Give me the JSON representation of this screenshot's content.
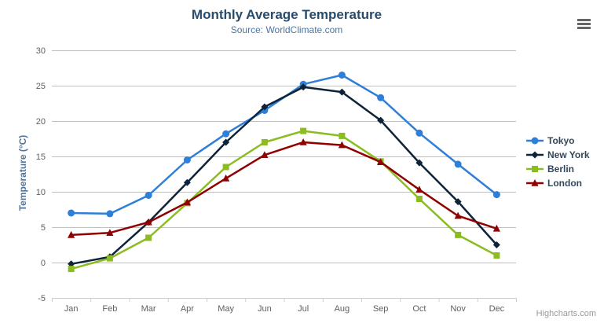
{
  "credit": "Highcharts.com",
  "menu_icon": "hamburger",
  "chart_data": {
    "type": "line",
    "title": "Monthly Average Temperature",
    "subtitle": "Source: WorldClimate.com",
    "xlabel": "",
    "ylabel": "Temperature (°C)",
    "ylim": [
      -5,
      30
    ],
    "ytick_step": 5,
    "grid": true,
    "legend_position": "right",
    "categories": [
      "Jan",
      "Feb",
      "Mar",
      "Apr",
      "May",
      "Jun",
      "Jul",
      "Aug",
      "Sep",
      "Oct",
      "Nov",
      "Dec"
    ],
    "series": [
      {
        "name": "Tokyo",
        "color": "#2f7ed8",
        "marker": "circle",
        "values": [
          7.0,
          6.9,
          9.5,
          14.5,
          18.2,
          21.5,
          25.2,
          26.5,
          23.3,
          18.3,
          13.9,
          9.6
        ]
      },
      {
        "name": "New York",
        "color": "#0d233a",
        "marker": "diamond",
        "values": [
          -0.2,
          0.8,
          5.7,
          11.3,
          17.0,
          22.0,
          24.8,
          24.1,
          20.1,
          14.1,
          8.6,
          2.5
        ]
      },
      {
        "name": "Berlin",
        "color": "#8bbc21",
        "marker": "square",
        "values": [
          -0.9,
          0.6,
          3.5,
          8.4,
          13.5,
          17.0,
          18.6,
          17.9,
          14.3,
          9.0,
          3.9,
          1.0
        ]
      },
      {
        "name": "London",
        "color": "#910000",
        "marker": "triangle",
        "values": [
          3.9,
          4.2,
          5.7,
          8.5,
          11.9,
          15.2,
          17.0,
          16.6,
          14.2,
          10.3,
          6.6,
          4.8
        ]
      }
    ]
  }
}
